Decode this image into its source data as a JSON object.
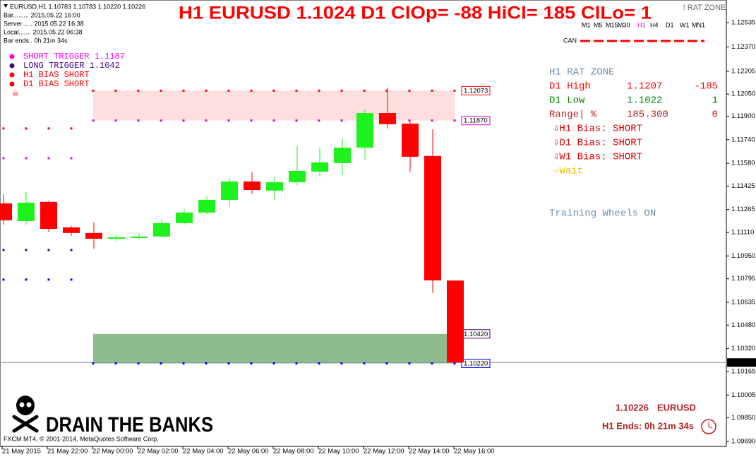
{
  "chart_data": {
    "type": "candlestick",
    "title": "H1 EURUSD 1.1024 D1 ClOp= -88 HiCl= 185 ClLo= 1",
    "categories": [
      "21 May 2015",
      null,
      "21 May 22:00",
      null,
      "22 May 00:00",
      null,
      "22 May 02:00",
      null,
      "22 May 04:00",
      null,
      "22 May 06:00",
      null,
      "22 May 08:00",
      null,
      "22 May 10:00",
      null,
      "22 May 12:00",
      null,
      "22 May 14:00",
      null,
      "22 May 16:00"
    ],
    "open": [
      1.11307,
      1.11187,
      1.11317,
      1.11144,
      1.11106,
      1.11067,
      1.11072,
      1.11082,
      1.11173,
      1.11245,
      1.11331,
      1.11456,
      1.11394,
      1.11451,
      1.11523,
      1.11581,
      1.11686,
      1.11921,
      1.11849,
      1.11629,
      1.10783
    ],
    "high": [
      1.1137,
      1.11384,
      1.11326,
      1.11154,
      1.11178,
      1.11091,
      1.11101,
      1.11202,
      1.11269,
      1.11355,
      1.1148,
      1.11523,
      1.1149,
      1.11696,
      1.11686,
      1.11749,
      1.11945,
      1.12094,
      1.11864,
      1.11811,
      1.10783
    ],
    "low": [
      1.11163,
      1.11163,
      1.11115,
      1.11086,
      1.11,
      1.11048,
      1.11063,
      1.11077,
      1.11163,
      1.11235,
      1.11283,
      1.1137,
      1.11331,
      1.11432,
      1.1149,
      1.11499,
      1.11605,
      1.11816,
      1.11523,
      1.10698,
      1.1022
    ],
    "close": [
      1.11192,
      1.11312,
      1.11134,
      1.11106,
      1.11067,
      1.11077,
      1.11082,
      1.11173,
      1.11245,
      1.11331,
      1.11456,
      1.11398,
      1.11451,
      1.11528,
      1.11586,
      1.11686,
      1.11921,
      1.11845,
      1.11624,
      1.10784,
      1.10226
    ],
    "up_color": "#1ef21e",
    "down_color": "#ff0000",
    "ylim": [
      1.09656,
      1.12689
    ],
    "yticks": [
      1.12535,
      {
        "value": 1.1237,
        "label": "1.12370"
      },
      1.12205,
      {
        "value": 1.1205,
        "label": "1.12050"
      },
      {
        "value": 1.119,
        "label": "1.11900"
      },
      {
        "value": 1.1174,
        "label": "1.11740"
      },
      {
        "value": 1.1158,
        "label": "1.11580"
      },
      1.11425,
      1.11265,
      {
        "value": 1.1111,
        "label": "1.11110"
      },
      {
        "value": 1.1095,
        "label": "1.10950"
      },
      1.10795,
      1.10635,
      {
        "value": 1.1048,
        "label": "1.10480"
      },
      {
        "value": 1.1032,
        "label": "1.10320"
      },
      1.10165,
      {
        "value": 1.10005,
        "label": "1.10005"
      },
      {
        "value": 1.0985,
        "label": "1.09850"
      },
      {
        "value": 1.0969,
        "label": "1.09690"
      }
    ],
    "current_price": 1.10226,
    "zones": [
      {
        "from": 1.12073,
        "to": 1.1187,
        "color": "#ffdede"
      },
      {
        "from": 1.1042,
        "to": 1.1022,
        "color": "#8fbc8f"
      }
    ],
    "levels": [
      {
        "value": 1.12073,
        "color": "#ff0000",
        "dots": true
      },
      {
        "value": {
          "value": 1.1187,
          "label": "1.11870"
        },
        "color": "#e000e0",
        "dots": true
      },
      {
        "value": {
          "value": 1.1042,
          "label": "1.10420"
        },
        "color": "#4b0082",
        "dots": false
      },
      {
        "value": {
          "value": 1.1022,
          "label": "1.10220"
        },
        "color": "#0000ff",
        "dots": true
      }
    ],
    "prior_levels": [
      {
        "value": 1.11816,
        "color": "#ff0000"
      },
      {
        "value": 1.11614,
        "color": "#e000e0"
      },
      {
        "value": 1.1099,
        "color": "#4b0082"
      },
      {
        "value": 1.10789,
        "color": "#0000ff"
      }
    ]
  },
  "header": {
    "symbol_line": "EURUSD,H1  1.10783 1.10783 1.10220 1.10226",
    "info": [
      "Bar......... 2015.05.22 16:00",
      "Server...... 2015.05.22 16:38",
      "Local....... 2015.05.22 06:38",
      "Bar ends.. 0h 21m 34s"
    ],
    "indicator": "! RAT ZONE",
    "timeframes": [
      "M1",
      "M5",
      "M15",
      "M30",
      "H1",
      "H4",
      "D1",
      "W1",
      "MN1"
    ],
    "can": "CAN"
  },
  "legend": [
    {
      "text": "SHORT TRIGGER 1.1187",
      "color": "#ff00ff"
    },
    {
      "text": "LONG TRIGGER    1.1042",
      "color": "#4b0082"
    },
    {
      "text": "H1 BIAS SHORT",
      "color": "#ff0000"
    },
    {
      "text": "D1 BIAS SHORT",
      "color": "#ff0000"
    }
  ],
  "panel": {
    "title": "H1 RAT ZONE",
    "rows": [
      [
        "D1 High",
        "1.1207",
        "-185"
      ],
      [
        "D1 Low",
        "1.1022",
        "1"
      ],
      [
        "Range| %",
        "185.300",
        "0"
      ]
    ],
    "bias": [
      "⇩H1 Bias: SHORT",
      "⇩D1 Bias: SHORT",
      "⇩W1 Bias: SHORT"
    ],
    "wait": "⇨Wait",
    "wheels": "Training Wheels ON"
  },
  "footer": {
    "price": "1.10226",
    "symbol": "EURUSD",
    "ends": "H1 Ends: 0h 21m 34s",
    "brand": "DRAIN THE BANKS",
    "copyright": "FXCM MT4, © 2001-2014, MetaQuotes Software Corp."
  }
}
